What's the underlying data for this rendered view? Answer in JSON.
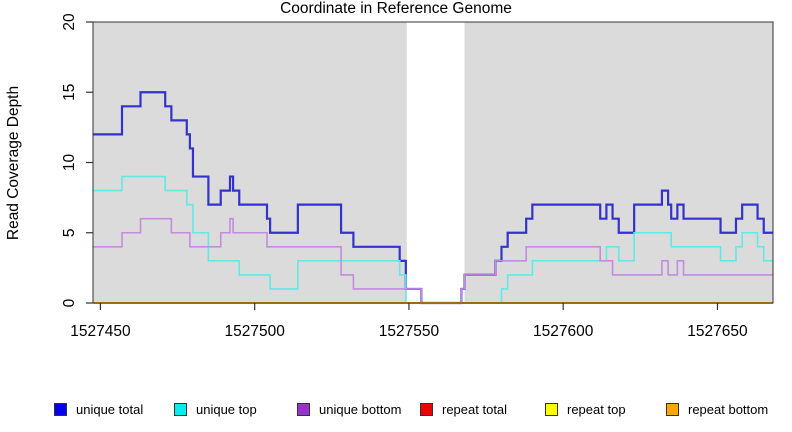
{
  "figure": {
    "background_color": "#FFFFFF",
    "plot_background_color": "#DBDBDB",
    "frame_color": "#333333"
  },
  "chart_data": {
    "type": "line",
    "subtype": "step-coverage-plot",
    "title": "",
    "xlabel": "Coordinate in Reference Genome",
    "ylabel": "Read Coverage Depth",
    "xlim": [
      1527447.6,
      1527668.0
    ],
    "ylim": [
      0,
      20
    ],
    "xticks": [
      1527450,
      1527500,
      1527550,
      1527600,
      1527650
    ],
    "xtick_labels": [
      "1527450",
      "1527500",
      "1527550",
      "1527600",
      "1527650"
    ],
    "yticks": [
      0,
      5,
      10,
      15,
      20
    ],
    "ytick_labels": [
      "0",
      "5",
      "10",
      "15",
      "20"
    ],
    "grid": false,
    "legend_position": "bottom",
    "coverage_gap_x": [
      1527549.3,
      1527568.0
    ],
    "series": [
      {
        "name": "unique total",
        "line_color": "#3333CC",
        "legend_color": "#0000EE",
        "width": 2.2,
        "steps": [
          [
            1527448,
            12
          ],
          [
            1527457,
            14
          ],
          [
            1527463,
            15
          ],
          [
            1527471,
            14
          ],
          [
            1527473,
            13
          ],
          [
            1527478,
            12
          ],
          [
            1527479,
            11
          ],
          [
            1527480,
            9
          ],
          [
            1527485,
            7
          ],
          [
            1527489,
            8
          ],
          [
            1527492,
            9
          ],
          [
            1527493,
            8
          ],
          [
            1527495,
            7
          ],
          [
            1527504,
            6
          ],
          [
            1527505,
            5
          ],
          [
            1527514,
            7
          ],
          [
            1527528,
            5
          ],
          [
            1527532,
            4
          ],
          [
            1527547,
            3
          ],
          [
            1527549,
            1
          ],
          [
            1527554,
            0
          ],
          [
            1527567,
            1
          ],
          [
            1527568,
            2
          ],
          [
            1527578,
            3
          ],
          [
            1527580,
            4
          ],
          [
            1527582,
            5
          ],
          [
            1527588,
            6
          ],
          [
            1527590,
            7
          ],
          [
            1527612,
            6
          ],
          [
            1527614,
            7
          ],
          [
            1527616,
            6
          ],
          [
            1527618,
            5
          ],
          [
            1527623,
            7
          ],
          [
            1527632,
            8
          ],
          [
            1527634,
            7
          ],
          [
            1527635,
            6
          ],
          [
            1527637,
            7
          ],
          [
            1527639,
            6
          ],
          [
            1527651,
            5
          ],
          [
            1527656,
            6
          ],
          [
            1527658,
            7
          ],
          [
            1527663,
            6
          ],
          [
            1527665,
            5
          ]
        ]
      },
      {
        "name": "unique top",
        "line_color": "#63E8E4",
        "legend_color": "#00EEEE",
        "width": 1.6,
        "steps": [
          [
            1527448,
            8
          ],
          [
            1527457,
            9
          ],
          [
            1527471,
            8
          ],
          [
            1527478,
            7
          ],
          [
            1527480,
            5
          ],
          [
            1527485,
            3
          ],
          [
            1527495,
            2
          ],
          [
            1527505,
            1
          ],
          [
            1527514,
            3
          ],
          [
            1527547,
            2
          ],
          [
            1527549,
            0
          ],
          [
            1527580,
            1
          ],
          [
            1527582,
            2
          ],
          [
            1527590,
            3
          ],
          [
            1527614,
            4
          ],
          [
            1527618,
            3
          ],
          [
            1527623,
            5
          ],
          [
            1527635,
            4
          ],
          [
            1527651,
            3
          ],
          [
            1527656,
            4
          ],
          [
            1527658,
            5
          ],
          [
            1527663,
            4
          ],
          [
            1527665,
            3
          ]
        ]
      },
      {
        "name": "unique bottom",
        "line_color": "#C48BDE",
        "legend_color": "#9933CC",
        "width": 1.6,
        "steps": [
          [
            1527448,
            4
          ],
          [
            1527457,
            5
          ],
          [
            1527463,
            6
          ],
          [
            1527473,
            5
          ],
          [
            1527479,
            4
          ],
          [
            1527489,
            5
          ],
          [
            1527492,
            6
          ],
          [
            1527493,
            5
          ],
          [
            1527504,
            4
          ],
          [
            1527528,
            2
          ],
          [
            1527532,
            1
          ],
          [
            1527554,
            0
          ],
          [
            1527567,
            1
          ],
          [
            1527568,
            2
          ],
          [
            1527578,
            3
          ],
          [
            1527588,
            4
          ],
          [
            1527612,
            3
          ],
          [
            1527616,
            2
          ],
          [
            1527632,
            3
          ],
          [
            1527634,
            2
          ],
          [
            1527637,
            3
          ],
          [
            1527639,
            2
          ]
        ]
      },
      {
        "name": "repeat total",
        "line_color": "#DD0000",
        "legend_color": "#EE0000",
        "width": 1.6,
        "steps": [
          [
            1527448,
            0
          ]
        ]
      },
      {
        "name": "repeat top",
        "line_color": "#FFFF00",
        "legend_color": "#FFFF00",
        "width": 1.6,
        "steps": [
          [
            1527448,
            0
          ]
        ]
      },
      {
        "name": "repeat bottom",
        "line_color": "#FFA500",
        "legend_color": "#FFA500",
        "width": 2,
        "steps": [
          [
            1527448,
            0
          ]
        ]
      }
    ]
  },
  "legend_item_lefts": [
    54,
    174,
    297,
    420,
    545,
    666
  ]
}
